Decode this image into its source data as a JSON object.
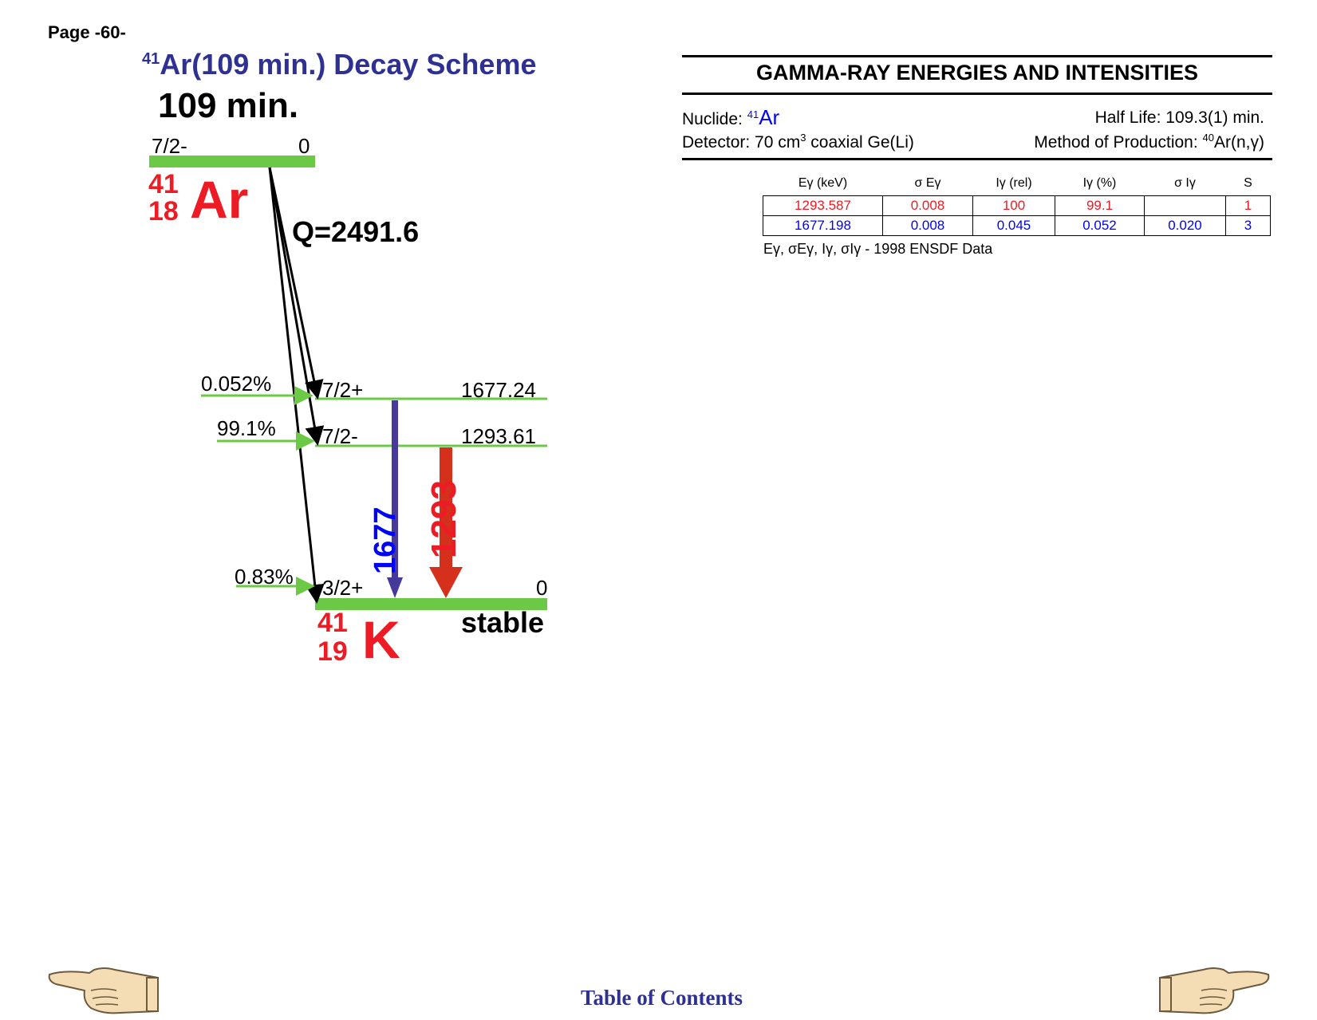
{
  "page_label": "Page -60-",
  "scheme": {
    "title_mass": "41",
    "title_text": "Ar(109 min.) Decay Scheme",
    "halflife": "109 min.",
    "q_value": "Q=2491.6",
    "parent": {
      "spin": "7/2-",
      "energy": "0",
      "mass": "41",
      "z": "18",
      "symbol": "Ar"
    },
    "daughter": {
      "mass": "41",
      "z": "19",
      "symbol": "K",
      "stable_label": "stable"
    },
    "levels": [
      {
        "spin": "7/2+",
        "energy": "1677.24",
        "branch": "0.052%"
      },
      {
        "spin": "7/2-",
        "energy": "1293.61",
        "branch": "99.1%"
      },
      {
        "spin": "3/2+",
        "energy": "0",
        "branch": "0.83%"
      }
    ],
    "transitions": [
      {
        "label": "1677",
        "color": "#0000ff",
        "line_color": "#46399a"
      },
      {
        "label": "1293",
        "color": "#ed1c24",
        "line_color": "#d4301c"
      }
    ],
    "level_color": "#6bc945"
  },
  "gamma_table": {
    "heading": "GAMMA-RAY ENERGIES AND INTENSITIES",
    "nuclide_label": "Nuclide:",
    "nuclide_mass": "41",
    "nuclide_symbol": "Ar",
    "half_life": "Half Life: 109.3(1) min.",
    "detector_prefix": "Detector: 70 cm",
    "detector_sup": "3",
    "detector_suffix": " coaxial Ge(Li)",
    "method_prefix": "Method of Production: ",
    "method_sup": "40",
    "method_suffix": "Ar(n,γ)",
    "columns": [
      "Eγ (keV)",
      "σ Eγ",
      "Iγ (rel)",
      "Iγ (%)",
      "σ Iγ",
      "S"
    ],
    "rows": [
      [
        "1293.587",
        "0.008",
        "100",
        "99.1",
        "",
        "1"
      ],
      [
        "1677.198",
        "0.008",
        "0.045",
        "0.052",
        "0.020",
        "3"
      ]
    ],
    "footnote": "Eγ, σEγ, Iγ, σIγ - 1998 ENSDF Data"
  },
  "footer": {
    "toc_label": "Table of Contents"
  }
}
